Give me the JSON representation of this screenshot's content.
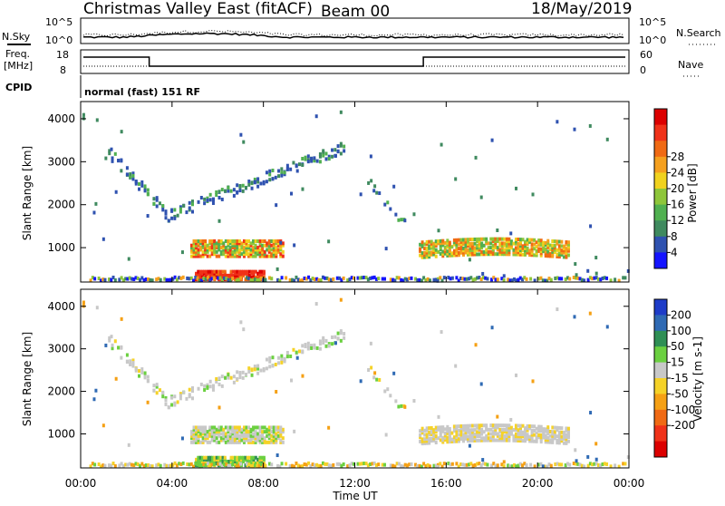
{
  "header": {
    "station": "Christmas Valley East (fitACF)",
    "beam": "Beam 00",
    "date": "18/May/2019"
  },
  "top_panels": {
    "nsky_label": "N.Sky",
    "nsearch_label": "N.Search",
    "nsky_ticks": [
      "10^5",
      "10^0"
    ],
    "nsearch_ticks": [
      "10^5",
      "10^0"
    ],
    "freq_label": "Freq.",
    "freq_unit": "[MHz]",
    "freq_ticks": [
      "18",
      "8"
    ],
    "nave_label": "Nave",
    "nave_ticks": [
      "60",
      "0"
    ],
    "cpid_label": "CPID",
    "cpid_text": "normal (fast) 151 RF"
  },
  "chart_data": [
    {
      "type": "heatmap",
      "panel": "power",
      "ylabel": "Slant Range [km]",
      "yticks": [
        "1000",
        "2000",
        "3000",
        "4000"
      ],
      "ylim": [
        200,
        4400
      ],
      "xlim": [
        0,
        24
      ],
      "colorbar_label": "Power [dB]",
      "colorbar_ticks": [
        "4",
        "8",
        "12",
        "16",
        "20",
        "24",
        "28"
      ],
      "colorbar_colors": [
        "#1414ff",
        "#2f52b0",
        "#3f8a5f",
        "#50b050",
        "#8ec63a",
        "#f0d21e",
        "#f5a01e",
        "#f06a14",
        "#f03219",
        "#dc0000"
      ],
      "echo_regions": [
        {
          "t": [
            1.2,
            11.6
          ],
          "r_start": 3200,
          "r_end": 1700,
          "r_peak": 3400,
          "note": "arc"
        },
        {
          "t": [
            4.8,
            8.8
          ],
          "r": [
            800,
            1150
          ],
          "level": "high"
        },
        {
          "t": [
            5.0,
            8.0
          ],
          "r": [
            250,
            450
          ],
          "level": "very high"
        },
        {
          "t": [
            12.3,
            14.2
          ],
          "r": [
            2600,
            1500
          ],
          "level": "low"
        },
        {
          "t": [
            14.8,
            21.4
          ],
          "r": [
            800,
            1200
          ],
          "level": "high"
        },
        {
          "t": [
            0,
            24
          ],
          "r": [
            200,
            320
          ],
          "level": "ground scatter"
        }
      ]
    },
    {
      "type": "heatmap",
      "panel": "velocity",
      "ylabel": "Slant Range [km]",
      "yticks": [
        "1000",
        "2000",
        "3000",
        "4000"
      ],
      "ylim": [
        200,
        4400
      ],
      "xlim": [
        0,
        24
      ],
      "xticks": [
        "00:00",
        "04:00",
        "08:00",
        "12:00",
        "16:00",
        "20:00",
        "00:00"
      ],
      "xlabel": "Time UT",
      "colorbar_label": "Velocity [m s-1]",
      "colorbar_ticks": [
        "200",
        "100",
        "50",
        "15",
        "-15",
        "-50",
        "-100",
        "-200"
      ],
      "colorbar_colors": [
        "#1e3cc8",
        "#2f6ab4",
        "#2f8f55",
        "#6bd040",
        "#c8c8c8",
        "#f5d228",
        "#f5a014",
        "#f06a14",
        "#f03219",
        "#dc0000"
      ]
    }
  ]
}
